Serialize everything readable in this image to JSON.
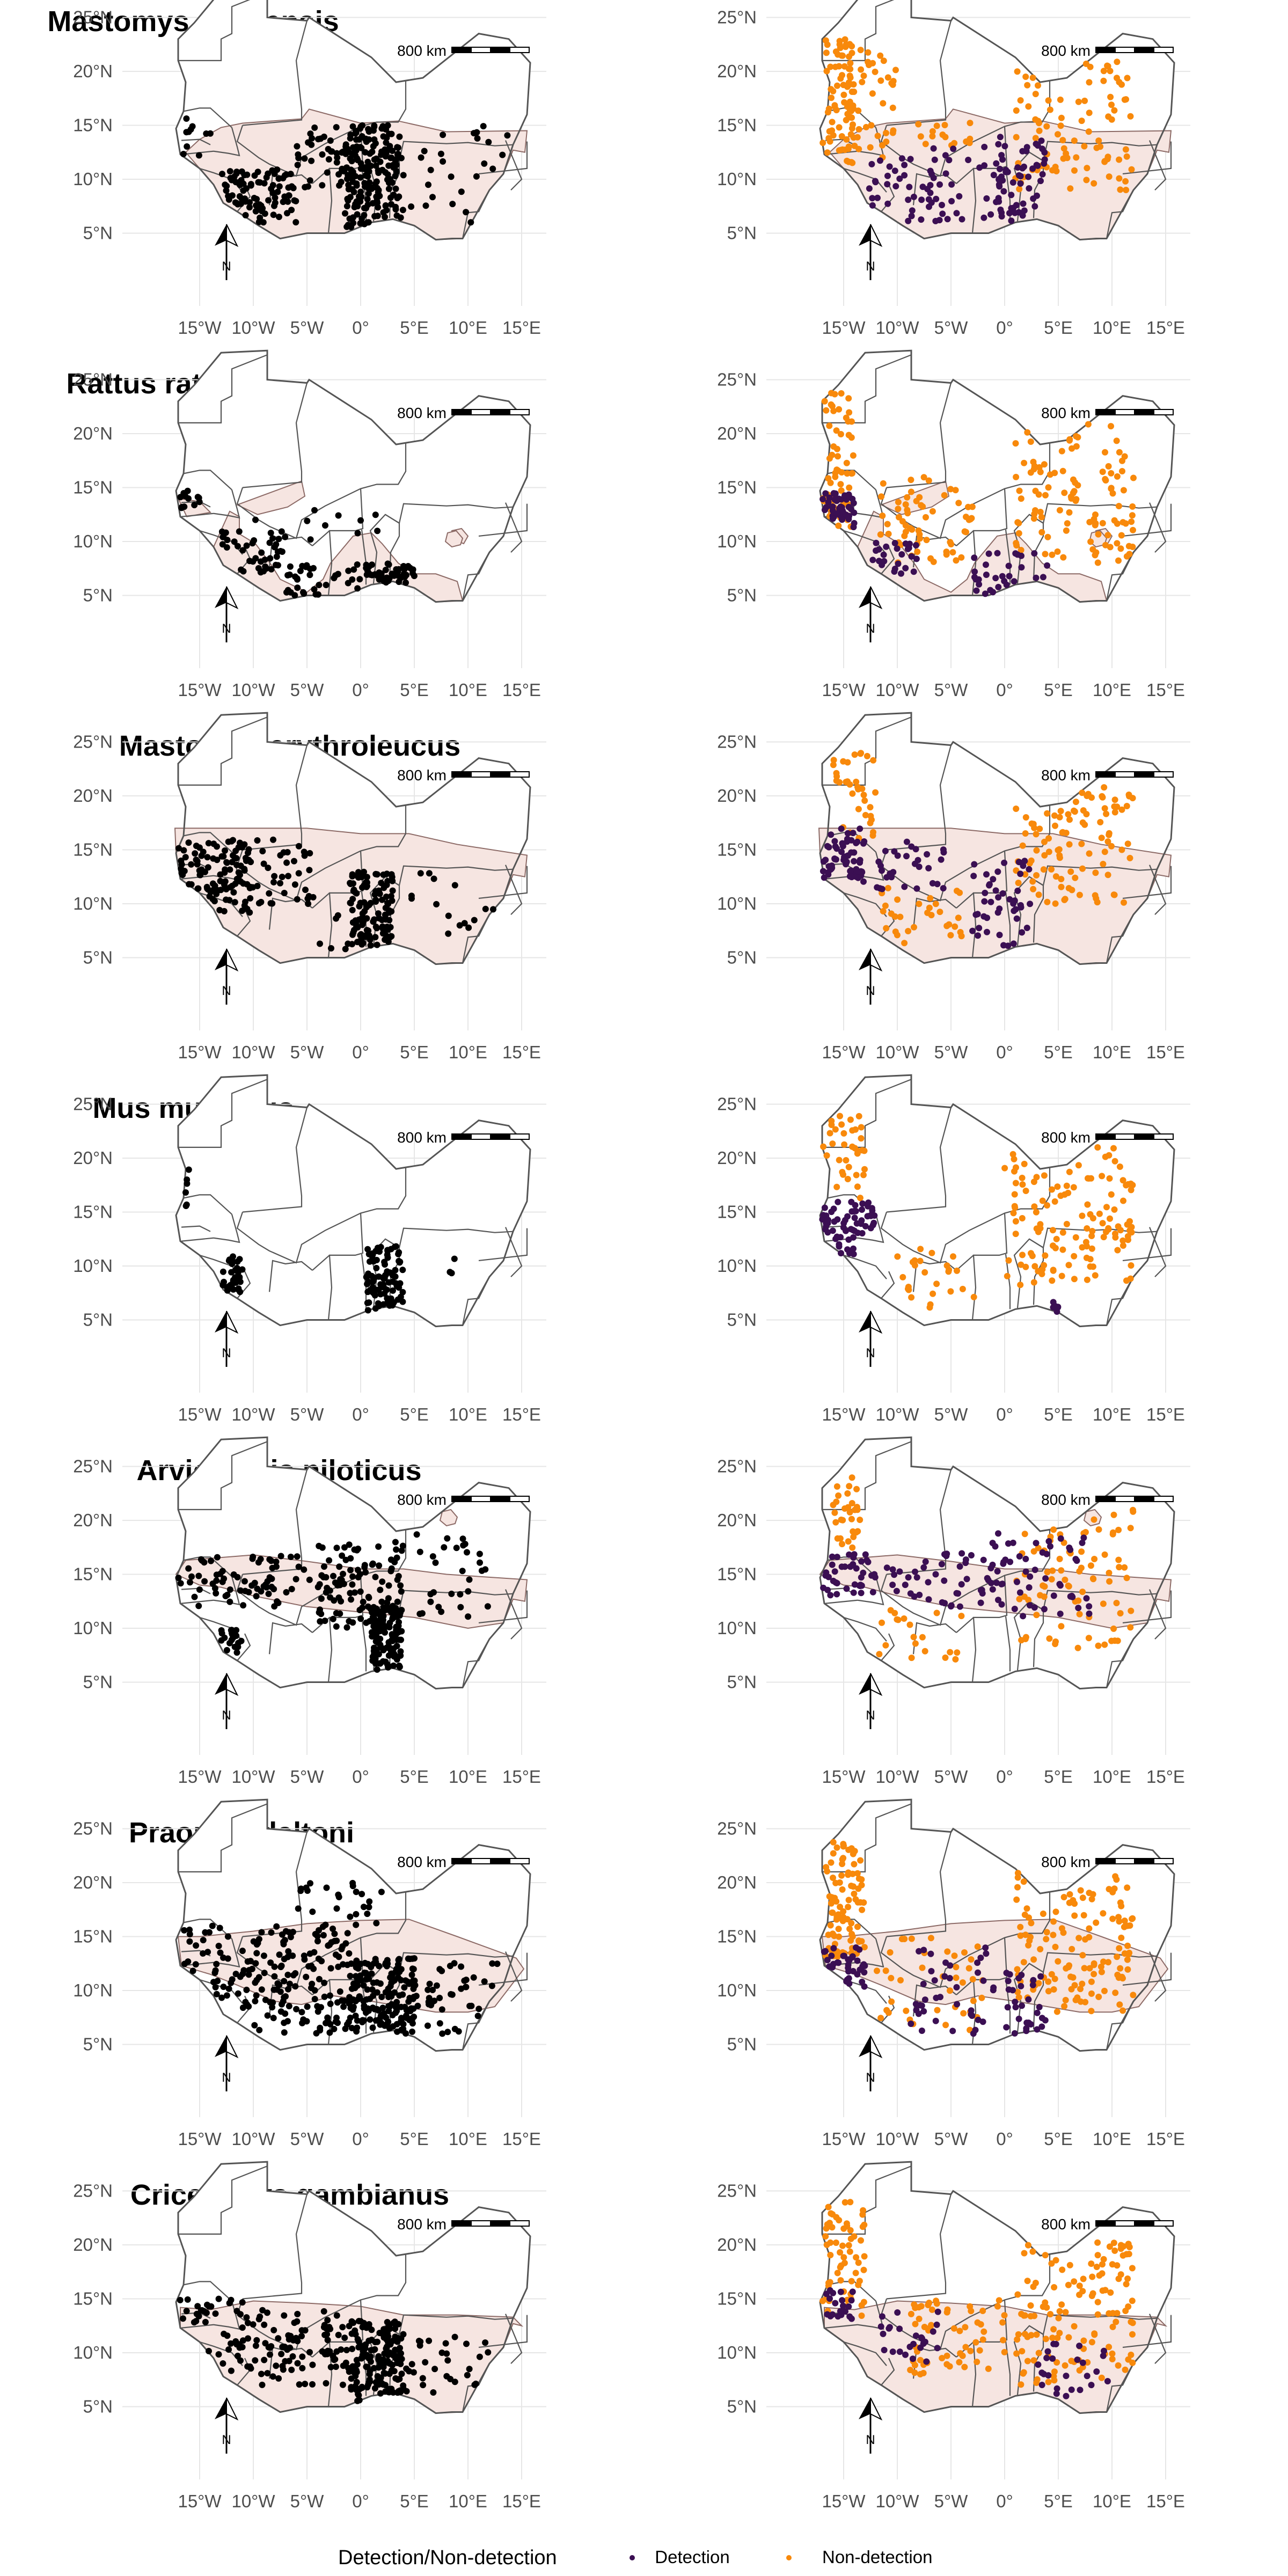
{
  "figure": {
    "legend": {
      "title": "Detection/Non-detection",
      "items": [
        {
          "label": "Detection",
          "color": "#3b0f53"
        },
        {
          "label": "Non-detection",
          "color": "#f8890b"
        }
      ]
    },
    "scalebar_label": "800 km",
    "north_label": "N",
    "lat_ticks": [
      "5°N",
      "10°N",
      "15°N",
      "20°N",
      "25°N"
    ],
    "lon_ticks": [
      "15°W",
      "10°W",
      "5°W",
      "0°",
      "5°E",
      "10°E",
      "15°E"
    ],
    "colors": {
      "range_fill": "#f6e5e1",
      "range_stroke": "#8c6a66",
      "border": "#555555",
      "grid": "#e6e6e6",
      "tick_text": "#4d4d4d",
      "presence_point": "#000000"
    }
  },
  "species": [
    {
      "name": "Mastomys natalensis"
    },
    {
      "name": "Rattus rattus"
    },
    {
      "name": "Mastomys erythroleucus"
    },
    {
      "name": "Mus musculus"
    },
    {
      "name": "Arvicanthis niloticus"
    },
    {
      "name": "Praomys daltoni"
    },
    {
      "name": "Cricetomys gambianus"
    }
  ]
}
